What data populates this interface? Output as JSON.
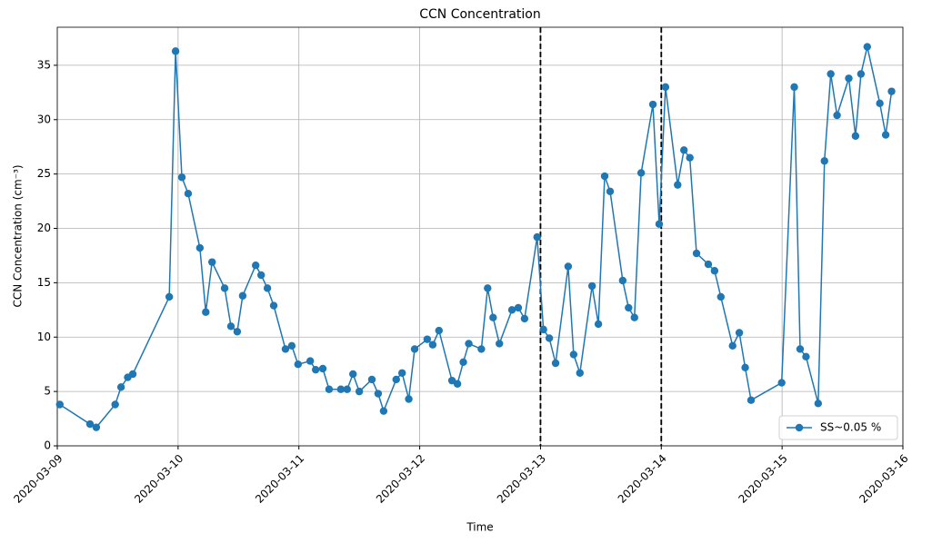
{
  "chart_data": {
    "type": "line",
    "title": "CCN Concentration",
    "xlabel": "Time",
    "ylabel": "CCN Concentration (cm⁻³)",
    "x": [
      "2020-03-09T00:30",
      "2020-03-09T06:30",
      "2020-03-09T07:45",
      "2020-03-09T11:30",
      "2020-03-09T12:40",
      "2020-03-09T14:00",
      "2020-03-09T15:00",
      "2020-03-09T22:15",
      "2020-03-09T23:30",
      "2020-03-10T00:45",
      "2020-03-10T02:00",
      "2020-03-10T04:20",
      "2020-03-10T05:30",
      "2020-03-10T06:45",
      "2020-03-10T09:15",
      "2020-03-10T10:30",
      "2020-03-10T11:45",
      "2020-03-10T12:50",
      "2020-03-10T15:25",
      "2020-03-10T16:30",
      "2020-03-10T17:45",
      "2020-03-10T19:00",
      "2020-03-10T21:20",
      "2020-03-10T22:35",
      "2020-03-10T23:50",
      "2020-03-11T02:15",
      "2020-03-11T03:20",
      "2020-03-11T04:45",
      "2020-03-11T06:00",
      "2020-03-11T08:20",
      "2020-03-11T09:35",
      "2020-03-11T10:45",
      "2020-03-11T12:00",
      "2020-03-11T14:30",
      "2020-03-11T15:45",
      "2020-03-11T16:50",
      "2020-03-11T19:20",
      "2020-03-11T20:30",
      "2020-03-11T21:50",
      "2020-03-11T23:00",
      "2020-03-12T01:30",
      "2020-03-12T02:35",
      "2020-03-12T03:50",
      "2020-03-12T06:25",
      "2020-03-12T07:30",
      "2020-03-12T08:40",
      "2020-03-12T09:45",
      "2020-03-12T12:15",
      "2020-03-12T13:30",
      "2020-03-12T14:35",
      "2020-03-12T15:50",
      "2020-03-12T18:20",
      "2020-03-12T19:35",
      "2020-03-12T20:50",
      "2020-03-12T23:20",
      "2020-03-13T00:35",
      "2020-03-13T01:45",
      "2020-03-13T03:00",
      "2020-03-13T05:30",
      "2020-03-13T06:35",
      "2020-03-13T07:50",
      "2020-03-13T10:15",
      "2020-03-13T11:30",
      "2020-03-13T12:45",
      "2020-03-13T13:50",
      "2020-03-13T16:20",
      "2020-03-13T17:30",
      "2020-03-13T18:40",
      "2020-03-13T20:00",
      "2020-03-13T22:20",
      "2020-03-13T23:35",
      "2020-03-14T00:50",
      "2020-03-14T03:15",
      "2020-03-14T04:30",
      "2020-03-14T05:40",
      "2020-03-14T07:00",
      "2020-03-14T09:20",
      "2020-03-14T10:35",
      "2020-03-14T11:50",
      "2020-03-14T14:10",
      "2020-03-14T15:30",
      "2020-03-14T16:40",
      "2020-03-14T17:50",
      "2020-03-14T23:55",
      "2020-03-15T02:25",
      "2020-03-15T03:35",
      "2020-03-15T04:45",
      "2020-03-15T07:10",
      "2020-03-15T08:25",
      "2020-03-15T09:40",
      "2020-03-15T10:55",
      "2020-03-15T13:15",
      "2020-03-15T14:35",
      "2020-03-15T15:40",
      "2020-03-15T16:55",
      "2020-03-15T19:25",
      "2020-03-15T20:35",
      "2020-03-15T21:45"
    ],
    "series": [
      {
        "name": "SS~0.05 %",
        "color": "#1f77b4",
        "values": [
          3.8,
          2.0,
          1.7,
          3.8,
          5.4,
          6.3,
          6.6,
          13.7,
          36.3,
          24.7,
          23.2,
          18.2,
          12.3,
          16.9,
          14.5,
          11.0,
          10.5,
          13.8,
          16.6,
          15.7,
          14.5,
          12.9,
          8.9,
          9.2,
          7.5,
          7.8,
          7.0,
          7.1,
          5.2,
          5.2,
          5.2,
          6.6,
          5.0,
          6.1,
          4.8,
          3.2,
          6.1,
          6.7,
          4.3,
          8.9,
          9.8,
          9.3,
          10.6,
          6.0,
          5.7,
          7.7,
          9.4,
          8.9,
          14.5,
          11.8,
          9.4,
          12.5,
          12.7,
          11.7,
          19.2,
          10.7,
          9.9,
          7.6,
          16.5,
          8.4,
          6.7,
          14.7,
          11.2,
          24.8,
          23.4,
          15.2,
          12.7,
          11.8,
          25.1,
          31.4,
          20.4,
          33.0,
          24.0,
          27.2,
          26.5,
          17.7,
          16.7,
          16.1,
          13.7,
          9.2,
          10.4,
          7.2,
          4.2,
          5.8,
          33.0,
          8.9,
          8.2,
          3.9,
          26.2,
          34.2,
          30.4,
          33.8,
          28.5,
          34.2,
          36.7,
          31.5,
          28.6,
          32.6
        ]
      }
    ],
    "xlim": [
      "2020-03-09",
      "2020-03-16"
    ],
    "xticks": [
      "2020-03-09",
      "2020-03-10",
      "2020-03-11",
      "2020-03-12",
      "2020-03-13",
      "2020-03-14",
      "2020-03-15",
      "2020-03-16"
    ],
    "ylim": [
      0,
      38.5
    ],
    "yticks": [
      0,
      5,
      10,
      15,
      20,
      25,
      30,
      35
    ],
    "vlines": [
      "2020-03-13",
      "2020-03-14"
    ],
    "grid": true,
    "legend": "lower right"
  }
}
